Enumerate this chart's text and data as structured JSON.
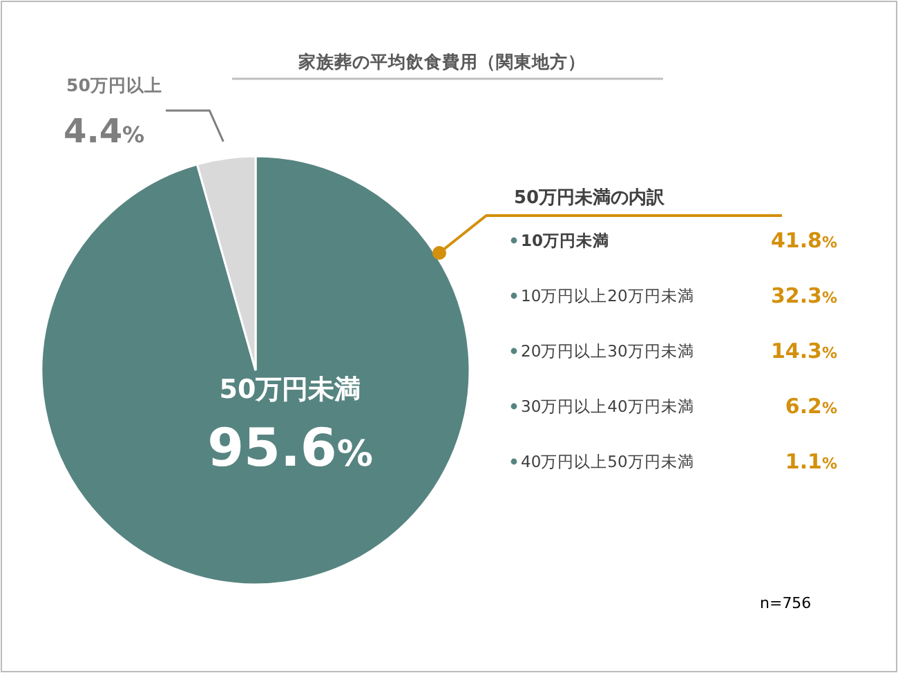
{
  "chart_data": [
    {
      "type": "pie",
      "title": "家族葬の平均飲食費用（関東地方）",
      "categories": [
        "50万円未満",
        "50万円以上"
      ],
      "values": [
        95.6,
        4.4
      ],
      "colors": [
        "#568481",
        "#d9d9d9"
      ],
      "value_labels": [
        "95.6%",
        "4.4%"
      ],
      "annotations": [
        "n=756"
      ]
    },
    {
      "type": "other",
      "title": "50万円未満の内訳",
      "categories": [
        "10万円未満",
        "10万円以上20万円未満",
        "20万円以上30万円未満",
        "30万円以上40万円未満",
        "40万円以上50万円未満"
      ],
      "values": [
        41.8,
        32.3,
        14.3,
        6.2,
        1.1
      ],
      "value_labels": [
        "41.8%",
        "32.3%",
        "14.3%",
        "6.2%",
        "1.1%"
      ],
      "color": "#d4900c"
    }
  ]
}
